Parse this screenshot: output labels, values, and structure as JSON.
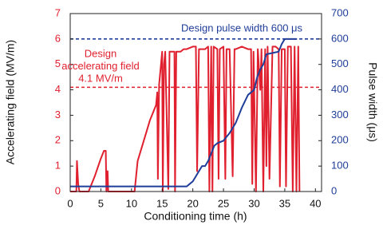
{
  "chart_data": {
    "type": "line",
    "xlabel": "Conditioning time (h)",
    "ylabel": "Accelerating field (MV/m)",
    "y2label": "Pulse width (μs)",
    "xlim": [
      0,
      41
    ],
    "xticks": [
      0,
      5,
      10,
      15,
      20,
      25,
      30,
      35,
      40
    ],
    "ylim": [
      0,
      7
    ],
    "yticks": [
      0,
      1,
      2,
      3,
      4,
      5,
      6,
      7
    ],
    "ytick_color": "#e0202e",
    "y2lim": [
      0,
      700
    ],
    "y2ticks": [
      0,
      100,
      200,
      300,
      400,
      500,
      600,
      700
    ],
    "y2tick_color": "#1f3d99",
    "series": [
      {
        "name": "Accelerating field",
        "color": "#e0202e",
        "axis": "y",
        "x": [
          0,
          1,
          1.1,
          1.3,
          1.5,
          3,
          4,
          5,
          5.5,
          5.8,
          5.9,
          6.1,
          6.2,
          10.5,
          11,
          12,
          13,
          14,
          14.2,
          14.3,
          14.5,
          15,
          15.1,
          15.3,
          15.5,
          16,
          16.2,
          17,
          17.1,
          17.3,
          18,
          18.5,
          19,
          20,
          20.5,
          20.7,
          21,
          21.5,
          22,
          22.5,
          22.7,
          23,
          23.2,
          23.4,
          24,
          24.2,
          24.4,
          25,
          25.3,
          25.5,
          26,
          26.5,
          26.8,
          27,
          28,
          29,
          29.5,
          29.7,
          29.9,
          30.3,
          30.6,
          31,
          31.2,
          31.5,
          31.8,
          32,
          32.2,
          32.5,
          33,
          33.5,
          34,
          34.2,
          34.5,
          35,
          35.2,
          35.5,
          36,
          36.3,
          36.6,
          36.9,
          37.2,
          37.4
        ],
        "values": [
          0,
          0,
          1.2,
          0.3,
          0,
          0,
          0.6,
          1.3,
          1.6,
          1.6,
          0,
          0.8,
          0,
          0,
          1.2,
          2,
          2.8,
          3.4,
          3.9,
          0.5,
          4.2,
          5.5,
          0,
          5.0,
          5.5,
          0.1,
          5.5,
          5.5,
          0,
          5.5,
          5.5,
          5.6,
          5.6,
          5.7,
          5.7,
          0.8,
          5.6,
          5.6,
          5.6,
          5.7,
          0,
          5.7,
          0,
          5.7,
          5.6,
          0.5,
          5.6,
          5.7,
          0.5,
          5.6,
          5.6,
          0.6,
          5.6,
          5.6,
          5.7,
          5.6,
          5.6,
          0.3,
          5.5,
          0,
          5.6,
          4.0,
          5.6,
          0,
          5.6,
          1,
          5.7,
          0.5,
          5.7,
          5.7,
          5.6,
          0.2,
          5.6,
          5.6,
          0.2,
          5.7,
          5.7,
          0,
          5.7,
          0,
          5.7,
          0
        ]
      },
      {
        "name": "Pulse width",
        "color": "#1f3d99",
        "axis": "y2",
        "x": [
          0,
          19,
          19.5,
          20,
          20.5,
          21,
          21.5,
          22,
          22.5,
          23,
          23.5,
          24,
          25,
          26,
          27,
          28,
          29,
          30,
          30.5,
          31,
          31.5,
          32,
          33,
          34,
          34.5,
          35,
          36,
          37
        ],
        "values": [
          20,
          20,
          30,
          40,
          60,
          80,
          100,
          100,
          120,
          150,
          180,
          190,
          200,
          230,
          270,
          330,
          380,
          400,
          450,
          480,
          500,
          540,
          545,
          550,
          580,
          600,
          600,
          600
        ]
      }
    ],
    "reference_lines": [
      {
        "value": 4.1,
        "axis": "y",
        "color": "#e0202e"
      },
      {
        "value": 600,
        "axis": "y2",
        "color": "#1f3d99"
      }
    ],
    "annotations": [
      {
        "lines": [
          "Design pulse width 600 μs"
        ],
        "color": "#1f3d99"
      },
      {
        "lines": [
          "Design",
          "accelerating field",
          "4.1 MV/m"
        ],
        "color": "#e0202e"
      }
    ]
  }
}
